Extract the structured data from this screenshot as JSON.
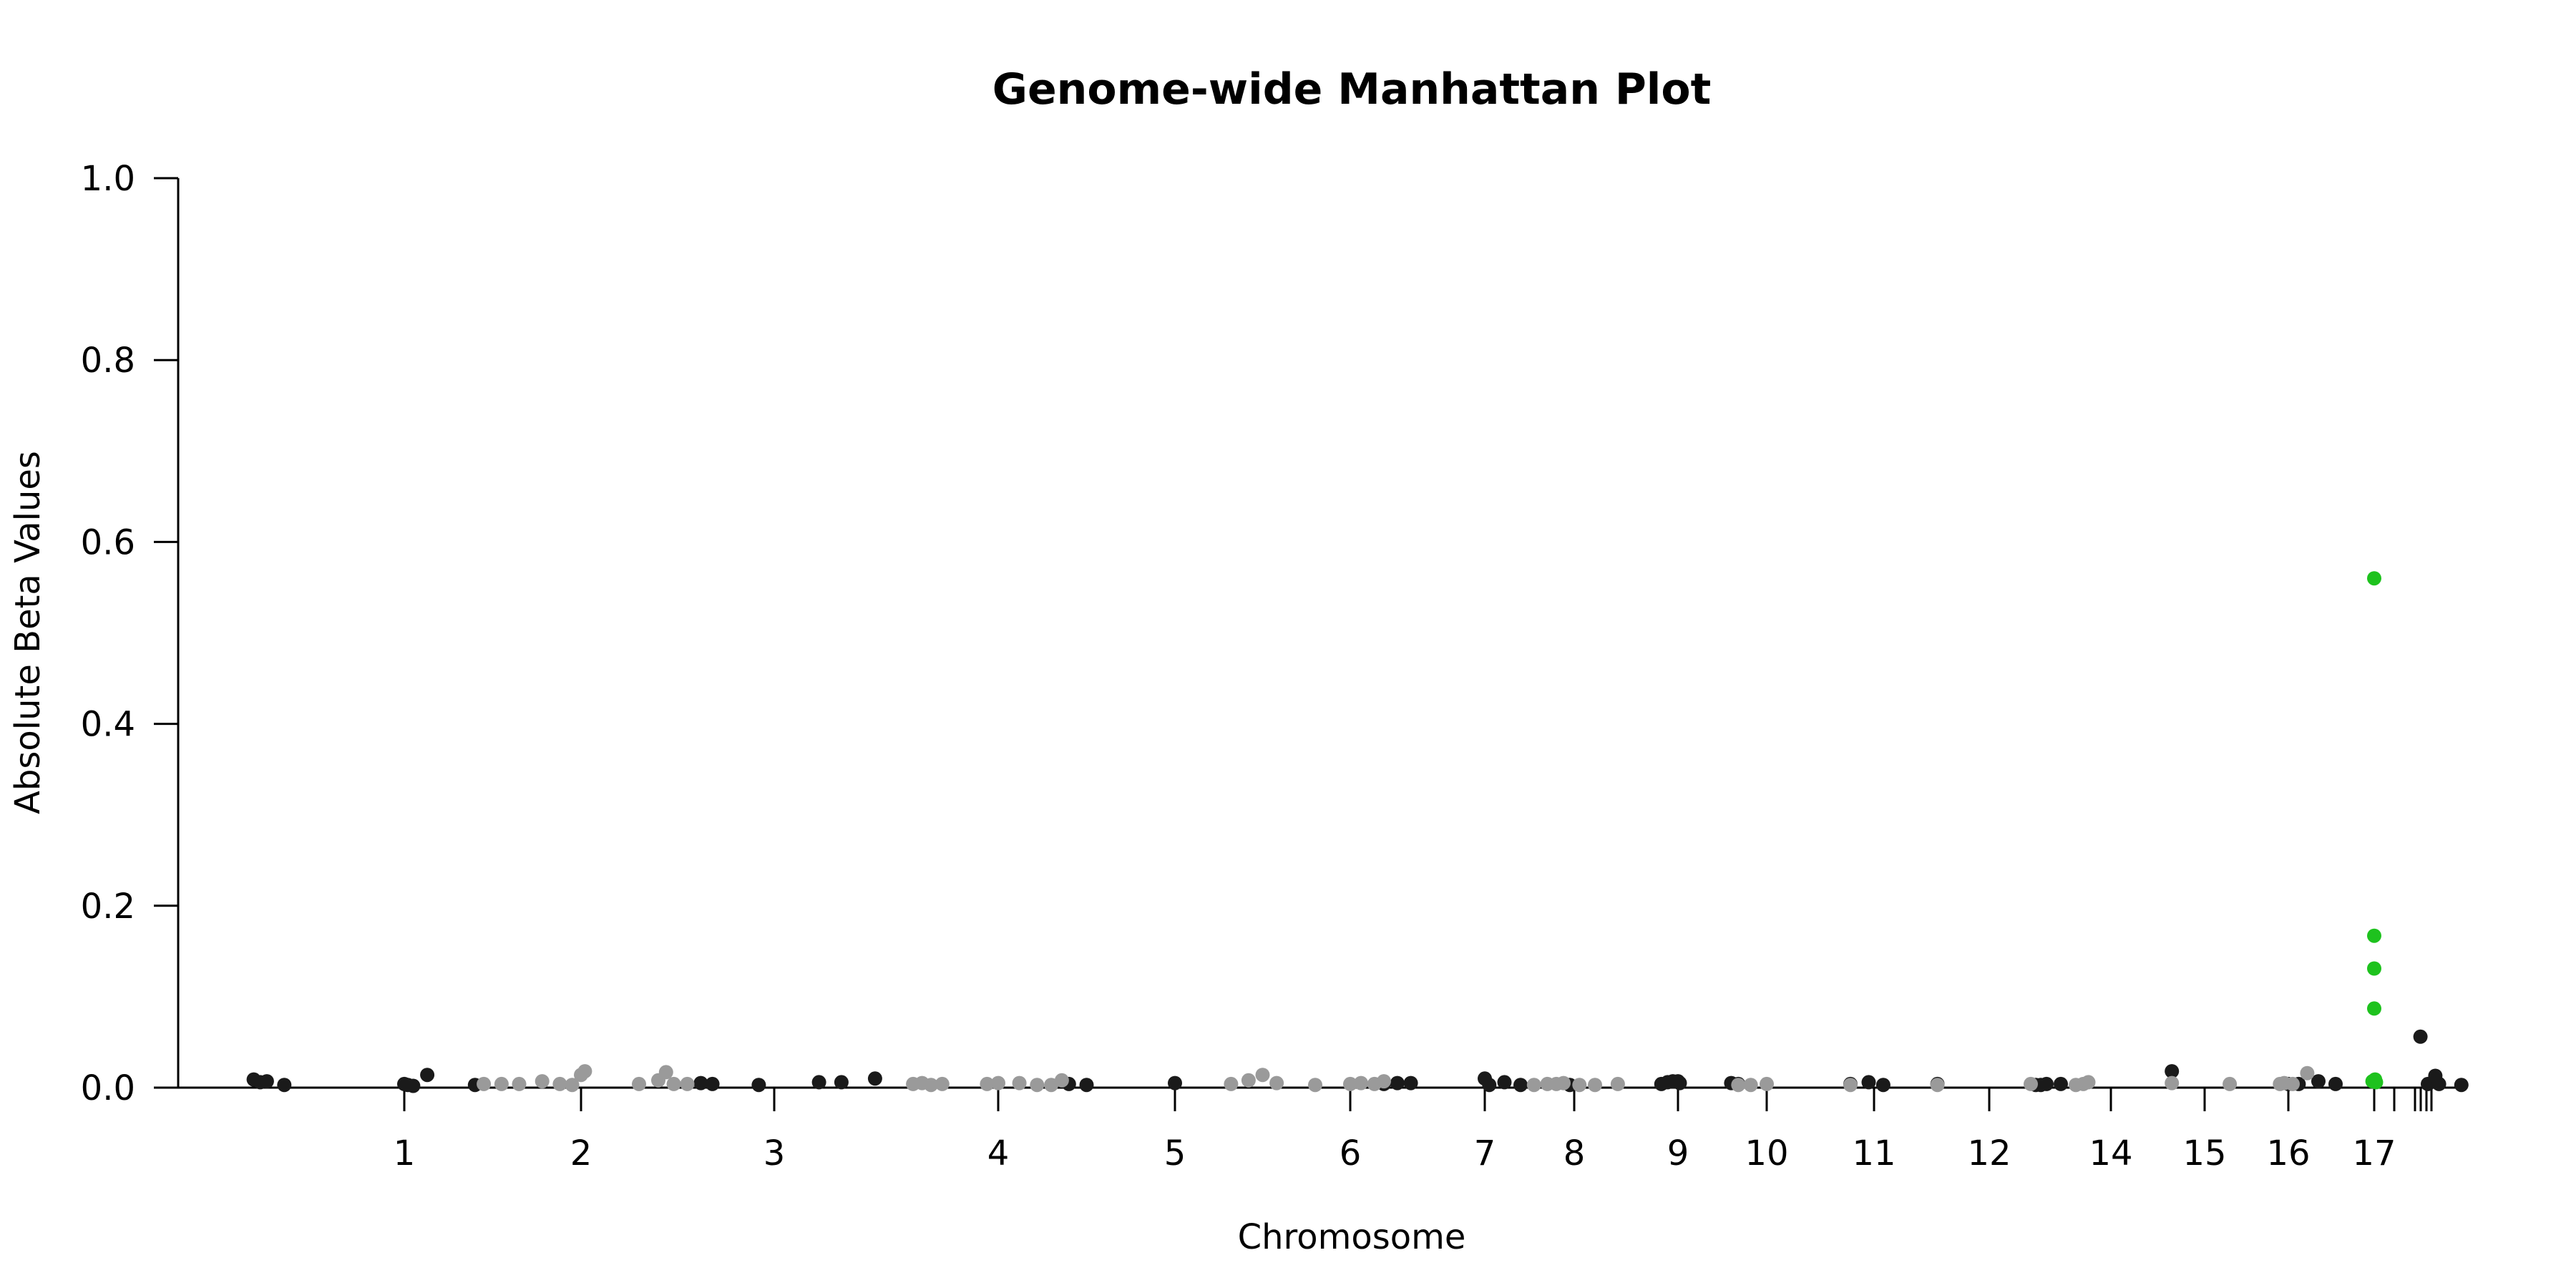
{
  "chart_data": {
    "type": "scatter",
    "title": "Genome-wide Manhattan Plot",
    "xlabel": "Chromosome",
    "ylabel": "Absolute Beta Values",
    "ylim": [
      0,
      1.0
    ],
    "y_ticks": [
      "0.0",
      "0.2",
      "0.4",
      "0.6",
      "0.8",
      "1.0"
    ],
    "x_tick_labels": [
      "1",
      "2",
      "3",
      "4",
      "5",
      "6",
      "7",
      "8",
      "9",
      "10",
      "11",
      "12",
      "14",
      "15",
      "16",
      "17",
      "",
      "",
      "",
      "",
      ""
    ],
    "colors": {
      "dark": "#1a1a1a",
      "light": "#9a9a9a",
      "highlight": "#1ec21e"
    },
    "grid": false,
    "legend": "none",
    "series": [
      {
        "color_key": "dark",
        "points": [
          [
            0.31,
            0.009
          ],
          [
            0.34,
            0.006
          ],
          [
            0.37,
            0.007
          ],
          [
            0.45,
            0.003
          ],
          [
            1.0,
            0.004
          ],
          [
            1.02,
            0.003
          ],
          [
            1.05,
            0.002
          ],
          [
            1.13,
            0.014
          ],
          [
            1.4,
            0.003
          ],
          [
            2.62,
            0.005
          ],
          [
            2.68,
            0.004
          ],
          [
            2.92,
            0.003
          ],
          [
            3.2,
            0.006
          ],
          [
            3.3,
            0.006
          ],
          [
            3.45,
            0.01
          ],
          [
            4.4,
            0.004
          ],
          [
            4.5,
            0.003
          ],
          [
            5.0,
            0.005
          ],
          [
            6.25,
            0.004
          ],
          [
            6.35,
            0.005
          ],
          [
            6.45,
            0.005
          ],
          [
            7.0,
            0.01
          ],
          [
            7.05,
            0.003
          ],
          [
            7.22,
            0.006
          ],
          [
            7.4,
            0.003
          ],
          [
            7.95,
            0.003
          ],
          [
            8.84,
            0.004
          ],
          [
            8.9,
            0.006
          ],
          [
            8.95,
            0.007
          ],
          [
            9.0,
            0.007
          ],
          [
            9.02,
            0.005
          ],
          [
            9.6,
            0.005
          ],
          [
            9.68,
            0.004
          ],
          [
            10.78,
            0.004
          ],
          [
            10.95,
            0.006
          ],
          [
            11.08,
            0.003
          ],
          [
            11.55,
            0.004
          ],
          [
            12.65,
            0.003
          ],
          [
            12.72,
            0.003
          ],
          [
            12.8,
            0.004
          ],
          [
            13.0,
            0.004
          ],
          [
            14.65,
            0.018
          ],
          [
            16.0,
            0.004
          ],
          [
            16.12,
            0.004
          ],
          [
            16.35,
            0.007
          ],
          [
            16.55,
            0.004
          ],
          [
            17.52,
            0.056
          ],
          [
            17.6,
            0.004
          ],
          [
            17.68,
            0.013
          ],
          [
            17.72,
            0.004
          ],
          [
            17.96,
            0.003
          ]
        ]
      },
      {
        "color_key": "light",
        "points": [
          [
            1.45,
            0.004
          ],
          [
            1.55,
            0.004
          ],
          [
            1.65,
            0.004
          ],
          [
            1.78,
            0.007
          ],
          [
            1.88,
            0.004
          ],
          [
            1.95,
            0.003
          ],
          [
            2.0,
            0.014
          ],
          [
            2.02,
            0.018
          ],
          [
            2.3,
            0.004
          ],
          [
            2.4,
            0.008
          ],
          [
            2.44,
            0.017
          ],
          [
            2.48,
            0.004
          ],
          [
            2.55,
            0.004
          ],
          [
            3.62,
            0.004
          ],
          [
            3.66,
            0.005
          ],
          [
            3.7,
            0.003
          ],
          [
            3.75,
            0.004
          ],
          [
            3.95,
            0.004
          ],
          [
            4.0,
            0.005
          ],
          [
            4.12,
            0.005
          ],
          [
            4.22,
            0.003
          ],
          [
            4.3,
            0.003
          ],
          [
            4.36,
            0.008
          ],
          [
            5.32,
            0.004
          ],
          [
            5.42,
            0.008
          ],
          [
            5.5,
            0.014
          ],
          [
            5.58,
            0.005
          ],
          [
            5.8,
            0.003
          ],
          [
            6.0,
            0.004
          ],
          [
            6.08,
            0.005
          ],
          [
            6.18,
            0.004
          ],
          [
            6.25,
            0.007
          ],
          [
            7.55,
            0.003
          ],
          [
            7.7,
            0.004
          ],
          [
            7.8,
            0.004
          ],
          [
            7.88,
            0.005
          ],
          [
            8.05,
            0.003
          ],
          [
            8.2,
            0.003
          ],
          [
            8.42,
            0.004
          ],
          [
            9.68,
            0.003
          ],
          [
            9.82,
            0.003
          ],
          [
            10.0,
            0.004
          ],
          [
            10.78,
            0.003
          ],
          [
            11.55,
            0.003
          ],
          [
            12.58,
            0.004
          ],
          [
            13.3,
            0.003
          ],
          [
            13.45,
            0.004
          ],
          [
            13.55,
            0.006
          ],
          [
            14.65,
            0.005
          ],
          [
            15.3,
            0.004
          ],
          [
            15.9,
            0.004
          ],
          [
            15.95,
            0.005
          ],
          [
            16.05,
            0.004
          ],
          [
            16.22,
            0.016
          ]
        ]
      },
      {
        "color_key": "highlight",
        "points": [
          [
            17.0,
            0.56
          ],
          [
            17.0,
            0.167
          ],
          [
            17.0,
            0.131
          ],
          [
            17.0,
            0.087
          ],
          [
            17.0,
            0.008
          ],
          [
            17.02,
            0.006
          ],
          [
            16.98,
            0.007
          ],
          [
            17.01,
            0.009
          ]
        ]
      }
    ]
  }
}
